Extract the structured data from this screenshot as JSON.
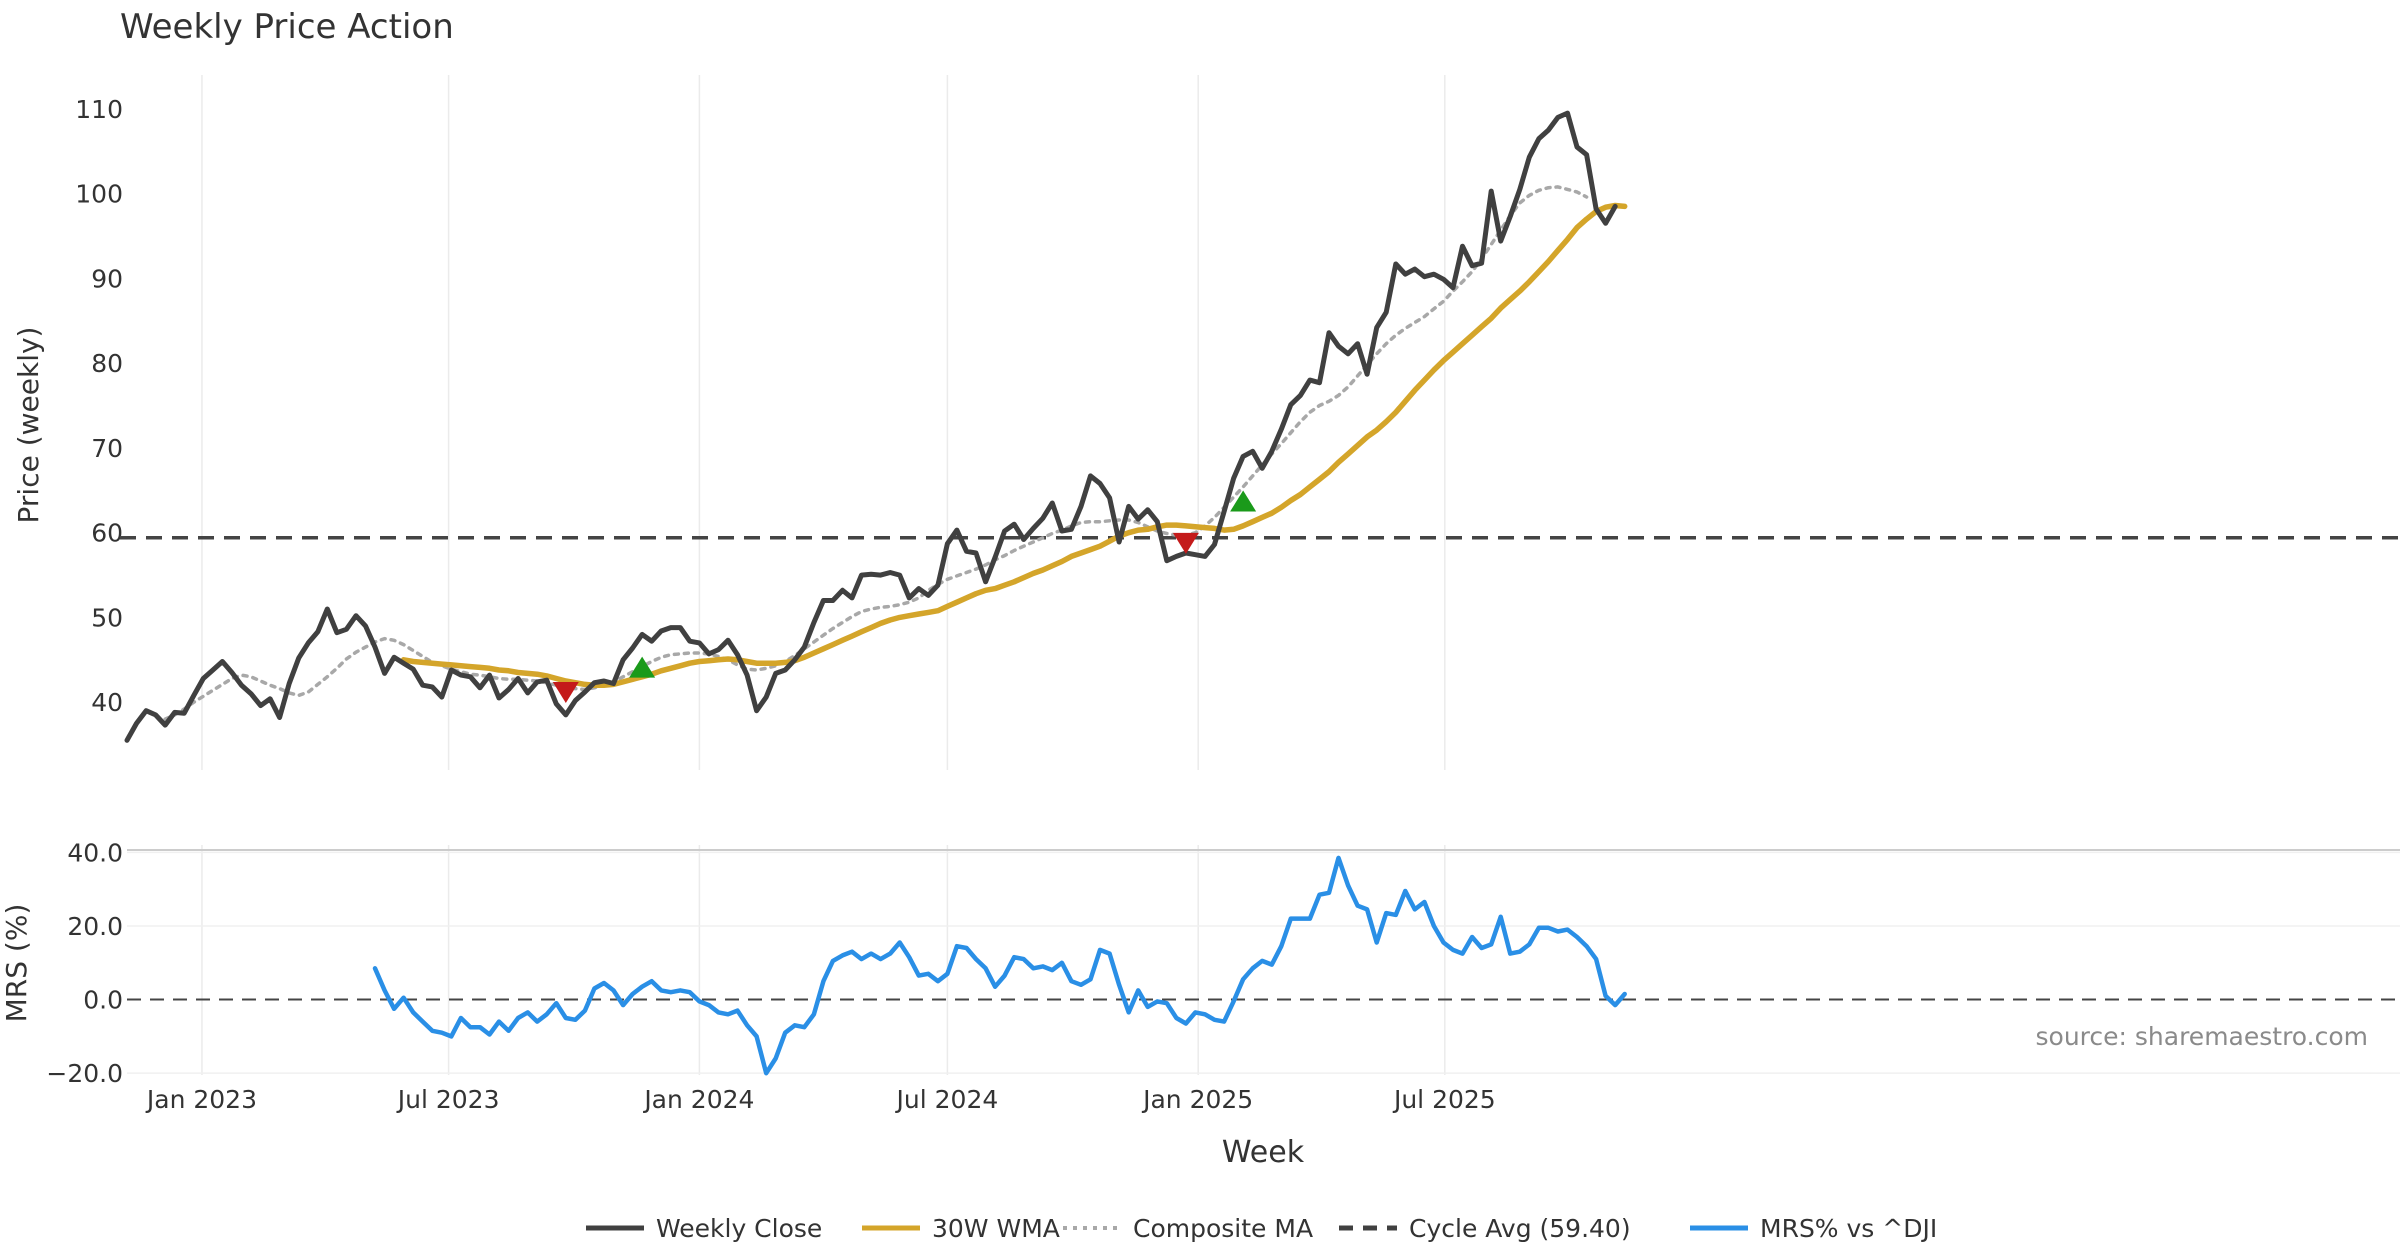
{
  "chart_data": [
    {
      "panel": "price",
      "type": "line",
      "title": "Weekly Price Action",
      "ylabel": "Price (weekly)",
      "ylim": [
        32,
        114
      ],
      "yticks": [
        40,
        50,
        60,
        70,
        80,
        90,
        100,
        110
      ],
      "x_start": "2022-11-07",
      "x_interval_days": 7,
      "cycle_avg": 59.4,
      "series": [
        {
          "name": "Weekly Close",
          "color": "#404040",
          "style": "solid",
          "offset": 0,
          "values": [
            35.5,
            37.5,
            39,
            38.5,
            37.3,
            38.8,
            38.7,
            40.8,
            42.8,
            43.8,
            44.8,
            43.5,
            42,
            41,
            39.6,
            40.4,
            38.2,
            42.2,
            45.2,
            47,
            48.3,
            51,
            48.2,
            48.6,
            50.2,
            49,
            46.5,
            43.4,
            45.3,
            44.6,
            43.9,
            42,
            41.8,
            40.6,
            43.8,
            43.2,
            43,
            41.7,
            43.2,
            40.5,
            41.5,
            42.8,
            41.1,
            42.4,
            42.6,
            39.8,
            38.5,
            40.2,
            41.2,
            42.3,
            42.5,
            42.2,
            45,
            46.4,
            48,
            47.2,
            48.4,
            48.8,
            48.8,
            47.2,
            47,
            45.7,
            46.2,
            47.3,
            45.6,
            43.2,
            39,
            40.6,
            43.4,
            43.8,
            45,
            46.5,
            49.4,
            52,
            52,
            53.2,
            52.3,
            55,
            55.1,
            55,
            55.3,
            55,
            52.3,
            53.4,
            52.6,
            53.8,
            58.7,
            60.3,
            57.8,
            57.6,
            54.2,
            57.1,
            60.2,
            61,
            59.2,
            60.5,
            61.7,
            63.5,
            60.2,
            60.4,
            63.1,
            66.7,
            65.8,
            64.1,
            58.9,
            63.1,
            61.6,
            62.7,
            61.3,
            56.7,
            57.2,
            57.6,
            57.4,
            57.2,
            58.6,
            62.5,
            66.4,
            69,
            69.6,
            67.6,
            69.6,
            72.2,
            75.1,
            76.2,
            78,
            77.7,
            83.6,
            82,
            81.1,
            82.3,
            78.7,
            84.2,
            86,
            91.7,
            90.5,
            91.1,
            90.2,
            90.5,
            89.9,
            88.9,
            93.8,
            91.5,
            91.8,
            100.3,
            94.4,
            97.3,
            100.5,
            104.3,
            106.5,
            107.5,
            109,
            109.5,
            105.5,
            104.6,
            98.2,
            96.5,
            98.5
          ]
        },
        {
          "name": "30W WMA",
          "color": "#d4a52a",
          "style": "solid",
          "offset": 29,
          "values": [
            45,
            44.8,
            44.7,
            44.6,
            44.5,
            44.4,
            44.3,
            44.2,
            44.1,
            44,
            43.8,
            43.7,
            43.5,
            43.4,
            43.3,
            43.1,
            42.8,
            42.5,
            42.3,
            42.1,
            42,
            42,
            42.1,
            42.4,
            42.7,
            43,
            43.3,
            43.7,
            44,
            44.3,
            44.6,
            44.8,
            44.9,
            45,
            45.1,
            45,
            44.8,
            44.6,
            44.6,
            44.6,
            44.7,
            44.9,
            45.3,
            45.8,
            46.3,
            46.8,
            47.3,
            47.8,
            48.3,
            48.8,
            49.3,
            49.7,
            50,
            50.2,
            50.4,
            50.6,
            50.8,
            51.3,
            51.8,
            52.3,
            52.8,
            53.2,
            53.4,
            53.8,
            54.2,
            54.7,
            55.2,
            55.6,
            56.1,
            56.6,
            57.2,
            57.6,
            58,
            58.4,
            59,
            59.6,
            60,
            60.3,
            60.4,
            60.7,
            60.9,
            60.9,
            60.8,
            60.7,
            60.6,
            60.5,
            60.3,
            60.4,
            60.8,
            61.3,
            61.8,
            62.3,
            63,
            63.8,
            64.5,
            65.4,
            66.3,
            67.2,
            68.3,
            69.3,
            70.3,
            71.3,
            72.1,
            73.1,
            74.2,
            75.5,
            76.8,
            78,
            79.2,
            80.3,
            81.3,
            82.3,
            83.3,
            84.3,
            85.3,
            86.5,
            87.5,
            88.5,
            89.6,
            90.8,
            92,
            93.3,
            94.6,
            96,
            97,
            97.9,
            98.4,
            98.6,
            98.5
          ]
        },
        {
          "name": "Composite MA",
          "color": "#a8a8a8",
          "style": "dotted",
          "offset": 4,
          "values": [
            38,
            38.5,
            39.2,
            40,
            40.7,
            41.4,
            42.1,
            42.8,
            43.2,
            43,
            42.5,
            42,
            41.6,
            41.1,
            40.8,
            41.2,
            42.1,
            43,
            44,
            45.1,
            45.9,
            46.5,
            47.1,
            47.5,
            47.3,
            46.8,
            46.1,
            45.4,
            44.7,
            44.3,
            43.9,
            43.6,
            43.3,
            43.2,
            43,
            42.8,
            42.7,
            42.7,
            42.6,
            42.5,
            42.3,
            42,
            41.7,
            41.6,
            41.5,
            41.7,
            42,
            42.4,
            43,
            43.6,
            44.2,
            44.8,
            45.3,
            45.6,
            45.7,
            45.8,
            45.8,
            45.7,
            45.4,
            45,
            44.4,
            43.9,
            43.8,
            44,
            44.3,
            44.8,
            45.5,
            46.3,
            47.1,
            47.9,
            48.7,
            49.4,
            50.1,
            50.7,
            51,
            51.2,
            51.3,
            51.5,
            51.8,
            52.3,
            53.2,
            53.9,
            54.5,
            54.9,
            55.3,
            55.7,
            56.2,
            56.8,
            57.3,
            57.9,
            58.4,
            58.9,
            59.4,
            59.9,
            60.3,
            60.8,
            61.2,
            61.3,
            61.3,
            61.4,
            61.5,
            61.5,
            61.2,
            60.7,
            60.2,
            59.9,
            59.7,
            59.7,
            60,
            60.8,
            61.8,
            63,
            64.2,
            65.4,
            66.7,
            68,
            69.3,
            70.5,
            71.8,
            73.1,
            74.2,
            75,
            75.5,
            76.2,
            77.2,
            78.5,
            79.8,
            81.1,
            82.3,
            83.3,
            84.1,
            84.8,
            85.5,
            86.4,
            87.3,
            88.5,
            89.6,
            90.8,
            92.3,
            94,
            95.7,
            97.4,
            98.9,
            99.8,
            100.4,
            100.7,
            100.8,
            100.5,
            100.2,
            99.6
          ]
        }
      ],
      "markers": [
        {
          "type": "sell",
          "index": 46,
          "value": 41.2
        },
        {
          "type": "buy",
          "index": 54,
          "value": 44.2
        },
        {
          "type": "sell",
          "index": 111,
          "value": 58.8
        },
        {
          "type": "buy",
          "index": 117,
          "value": 63.8
        }
      ],
      "marker_colors": {
        "buy": "#1a9a1a",
        "sell": "#c41a1a"
      },
      "grid": true
    },
    {
      "panel": "mrs",
      "type": "line",
      "ylabel": "MRS (%)",
      "ylim": [
        -20.5,
        42
      ],
      "yticks": [
        40,
        20,
        0,
        -20
      ],
      "ytick_labels": [
        "40.0",
        "20.0",
        "0.0",
        "−20.0"
      ],
      "zero_line": true,
      "series": [
        {
          "name": "MRS% vs ^DJI",
          "color": "#2a8fe6",
          "style": "solid",
          "offset": 26,
          "values": [
            8.5,
            2.5,
            -2.5,
            0.5,
            -3.5,
            -6,
            -8.5,
            -9,
            -10,
            -5,
            -7.5,
            -7.5,
            -9.5,
            -6,
            -8.5,
            -5,
            -3.5,
            -6,
            -4,
            -1,
            -5,
            -5.5,
            -3,
            3,
            4.5,
            2.5,
            -1.5,
            1.5,
            3.5,
            5,
            2.5,
            2,
            2.5,
            2,
            -0.5,
            -1.5,
            -3.5,
            -4,
            -3,
            -7,
            -10,
            -20,
            -16,
            -9,
            -7,
            -7.5,
            -4,
            5,
            10.5,
            12,
            13,
            11,
            12.5,
            11,
            12.5,
            15.5,
            11.5,
            6.5,
            7,
            5,
            7,
            14.5,
            14,
            11,
            8.5,
            3.5,
            6.5,
            11.5,
            11,
            8.5,
            9,
            8,
            10,
            5,
            4,
            5.5,
            13.5,
            12.5,
            4,
            -3.5,
            2.5,
            -2,
            -0.5,
            -1,
            -5,
            -6.5,
            -3.5,
            -4,
            -5.5,
            -6,
            -0.5,
            5.5,
            8.5,
            10.5,
            9.5,
            14.5,
            22,
            22,
            22,
            28.5,
            29,
            38.5,
            31,
            25.5,
            24.5,
            15.5,
            23.5,
            23,
            29.5,
            24.5,
            26.5,
            20,
            15.5,
            13.5,
            12.5,
            17,
            14,
            15,
            22.5,
            12.5,
            13,
            15,
            19.5,
            19.5,
            18.5,
            19,
            17,
            14.5,
            11,
            1,
            -1.5,
            1.5
          ]
        }
      ],
      "grid": true,
      "annotation": "source: sharemaestro.com"
    }
  ],
  "x_axis": {
    "xlabel": "Week",
    "ticks": [
      {
        "date": "2023-01-01",
        "label": "Jan 2023"
      },
      {
        "date": "2023-07-01",
        "label": "Jul 2023"
      },
      {
        "date": "2024-01-01",
        "label": "Jan 2024"
      },
      {
        "date": "2024-07-01",
        "label": "Jul 2024"
      },
      {
        "date": "2025-01-01",
        "label": "Jan 2025"
      },
      {
        "date": "2025-07-01",
        "label": "Jul 2025"
      }
    ]
  },
  "legend": {
    "position": "bottom-center",
    "items": [
      {
        "label": "Weekly Close",
        "color": "#404040",
        "style": "solid"
      },
      {
        "label": "30W WMA",
        "color": "#d4a52a",
        "style": "solid"
      },
      {
        "label": "Composite MA",
        "color": "#a8a8a8",
        "style": "dotted"
      },
      {
        "label": "Cycle Avg (59.40)",
        "color": "#404040",
        "style": "dashed"
      },
      {
        "label": "MRS% vs ^DJI",
        "color": "#2a8fe6",
        "style": "solid"
      }
    ]
  }
}
